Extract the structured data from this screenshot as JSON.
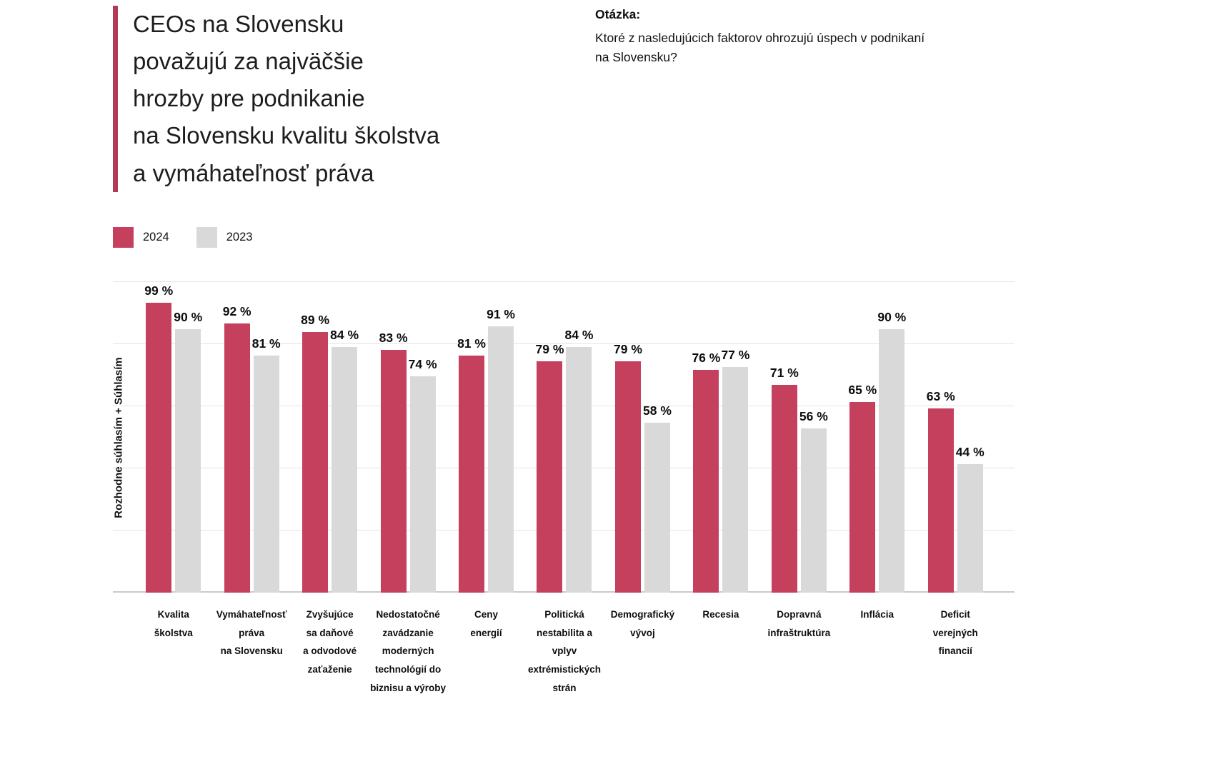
{
  "header": {
    "title": "CEOs na Slovensku\npovažujú za najväčšie\nhrozby pre podnikanie\nna Slovensku kvalitu školstva\na vymáhateľnosť práva",
    "question_label": "Otázka:",
    "question_text": "Ktoré z nasledujúcich faktorov ohrozujú úspech v podnikaní\nna Slovensku?"
  },
  "colors": {
    "accent": "#b23a57",
    "series_2024": "#c5405c",
    "series_2023": "#d9d9d9",
    "gridline": "#e4e4e4"
  },
  "chart_data": {
    "type": "bar",
    "title": "CEOs na Slovensku považujú za najväčšie hrozby pre podnikanie na Slovensku kvalitu školstva a vymáhateľnosť práva",
    "ylabel": "Rozhodne súhlasím + Súhlasím",
    "xlabel": "",
    "unit": "%",
    "value_suffix": " %",
    "ylim": [
      0,
      100
    ],
    "grid": true,
    "legend_position": "top-left",
    "categories": [
      "Kvalita\nškolstva",
      "Vymáhateľnosť\npráva\nna Slovensku",
      "Zvyšujúce\nsa daňové\na odvodové\nzaťaženie",
      "Nedostatočné\nzavádzanie\nmoderných\ntechnológií do\nbiznisu a výroby",
      "Ceny\nenergií",
      "Politická\nnestabilita a vplyv\nextrémistických\nstrán",
      "Demografický\nvývoj",
      "Recesia",
      "Dopravná\ninfraštruktúra",
      "Inflácia",
      "Deficit\nverejných\nfinancií"
    ],
    "series": [
      {
        "name": "2024",
        "color": "#c5405c",
        "values": [
          99,
          92,
          89,
          83,
          81,
          79,
          79,
          76,
          71,
          65,
          63
        ]
      },
      {
        "name": "2023",
        "color": "#d9d9d9",
        "values": [
          90,
          81,
          84,
          74,
          91,
          84,
          58,
          77,
          56,
          90,
          44
        ]
      }
    ]
  }
}
